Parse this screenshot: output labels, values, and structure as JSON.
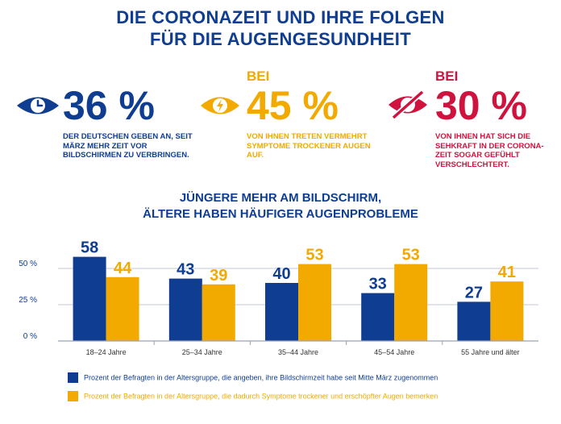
{
  "header": {
    "title_line1": "DIE CORONAZEIT UND IHRE FOLGEN",
    "title_line2": "FÜR DIE AUGENGESUNDHEIT"
  },
  "stats": [
    {
      "prefix": "",
      "value": "36 %",
      "text": "Der Deutschen geben an, seit März mehr Zeit vor Bildschirmen zu verbringen.",
      "color": "#0f3d91",
      "icon": "clock-eye-icon"
    },
    {
      "prefix": "BEI",
      "value": "45 %",
      "text": "von ihnen treten vermehrt Symptome trockener Augen auf.",
      "color": "#f2a900",
      "icon": "lightning-eye-icon"
    },
    {
      "prefix": "BEI",
      "value": "30 %",
      "text": "von ihnen hat sich die Sehkraft in der Corona-zeit sogar gefühlt verschlechtert.",
      "color": "#d0123f",
      "icon": "crossed-eye-icon"
    }
  ],
  "colors": {
    "blue": "#0f3d91",
    "yellow": "#f2a900",
    "red": "#d0123f",
    "grid": "#c3c9d6"
  },
  "chart_data": {
    "type": "bar",
    "title_line1": "JÜNGERE MEHR AM BILDSCHIRM,",
    "title_line2": "ÄLTERE HABEN HÄUFIGER AUGENPROBLEME",
    "categories": [
      "18–24 Jahre",
      "25–34 Jahre",
      "35–44 Jahre",
      "45–54 Jahre",
      "55 Jahre und älter"
    ],
    "series": [
      {
        "name": "Prozent der Befragten in der Altersgruppe, die angeben, ihre Bildschirmzeit habe seit Mitte März zugenommen",
        "color": "#0f3d91",
        "values": [
          58,
          43,
          40,
          33,
          27
        ]
      },
      {
        "name": "Prozent der Befragten in der Altersgruppe, die dadurch Symptome trockener und erschöpfter Augen bemerken",
        "color": "#f2a900",
        "values": [
          44,
          39,
          53,
          53,
          41
        ]
      }
    ],
    "yticks": [
      0,
      25,
      50
    ],
    "ytick_labels": [
      "0 %",
      "25 %",
      "50 %"
    ],
    "ylim": [
      0,
      60
    ],
    "grid": true,
    "legend": "bottom"
  }
}
